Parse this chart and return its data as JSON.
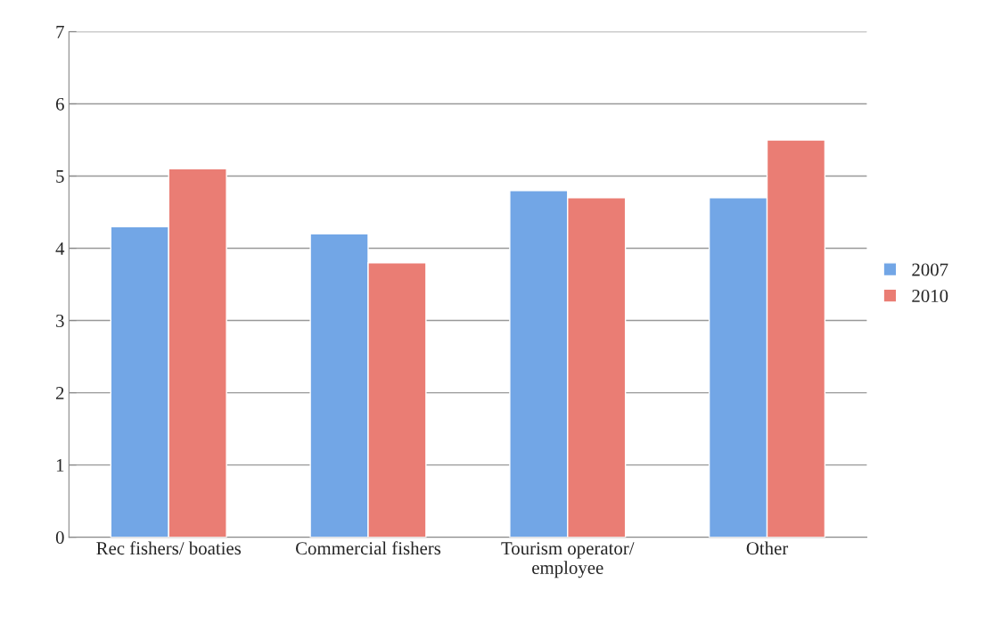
{
  "chart_data": {
    "type": "bar",
    "categories": [
      "Rec fishers/ boaties",
      "Commercial fishers",
      "Tourism operator/\nemployee",
      "Other"
    ],
    "series": [
      {
        "name": "2007",
        "color": "#72a6e6",
        "values": [
          4.3,
          4.2,
          4.8,
          4.7
        ]
      },
      {
        "name": "2010",
        "color": "#ea7d74",
        "values": [
          5.1,
          3.8,
          4.7,
          5.5
        ]
      }
    ],
    "ylim": [
      0,
      7
    ],
    "yticks": [
      0,
      1,
      2,
      3,
      4,
      5,
      6,
      7
    ],
    "grid": "y",
    "legend": "right"
  }
}
